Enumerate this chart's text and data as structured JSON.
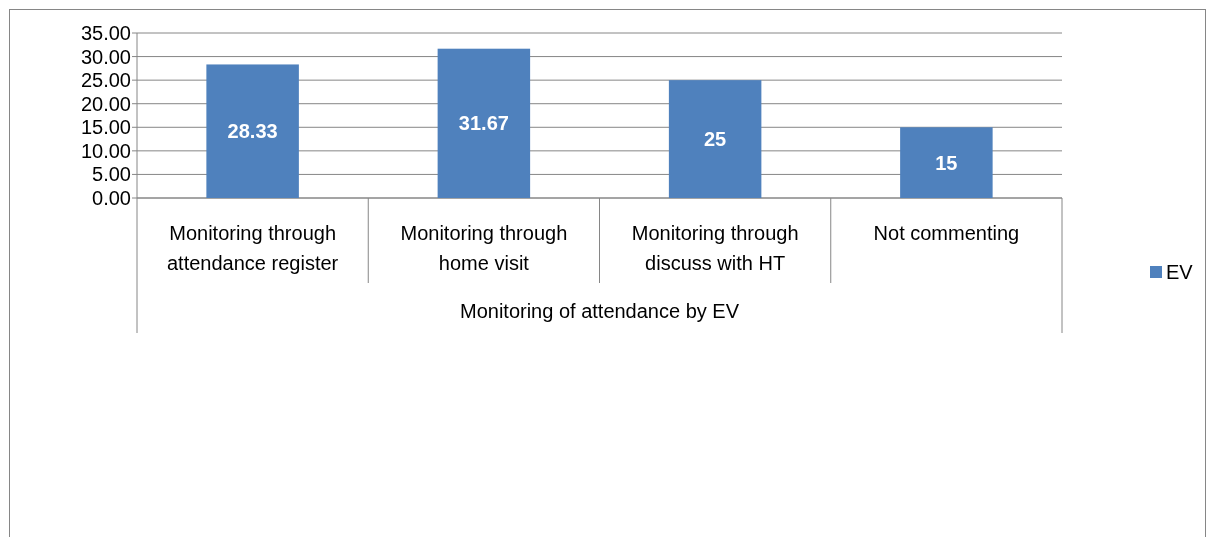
{
  "chart_data": {
    "type": "bar",
    "xlabel": "Monitoring of attendance by EV",
    "categories": [
      "Monitoring through attendance register",
      "Monitoring through home visit",
      "Monitoring through discuss with HT",
      "Not commenting"
    ],
    "series": [
      {
        "name": "EV",
        "color": "#4f81bd",
        "values": [
          28.33,
          31.67,
          25,
          15
        ]
      }
    ],
    "ylim": [
      0,
      35
    ],
    "yticks": [
      {
        "value": 0,
        "label": "0.00"
      },
      {
        "value": 5,
        "label": "5.00"
      },
      {
        "value": 10,
        "label": "10.00"
      },
      {
        "value": 15,
        "label": "15.00"
      },
      {
        "value": 20,
        "label": "20.00"
      },
      {
        "value": 25,
        "label": "25.00"
      },
      {
        "value": 30,
        "label": "30.00"
      },
      {
        "value": 35,
        "label": "35.00"
      }
    ],
    "grid": "y",
    "legend": "right",
    "data_labels": true
  }
}
